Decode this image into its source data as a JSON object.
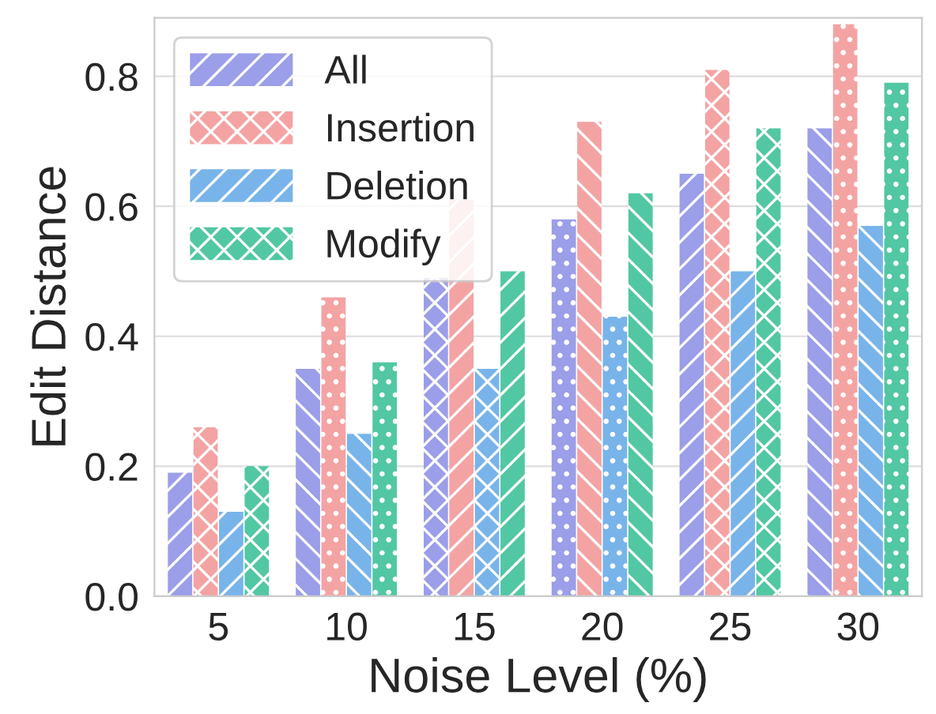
{
  "chart_data": {
    "type": "bar",
    "xlabel": "Noise Level (%)",
    "ylabel": "Edit Distance",
    "categories": [
      "5",
      "10",
      "15",
      "20",
      "25",
      "30"
    ],
    "series": [
      {
        "name": "All",
        "color": "#9b9ee8",
        "values": [
          0.19,
          0.35,
          0.49,
          0.58,
          0.65,
          0.72
        ]
      },
      {
        "name": "Insertion",
        "color": "#f4a3a3",
        "values": [
          0.26,
          0.46,
          0.61,
          0.73,
          0.81,
          0.88
        ]
      },
      {
        "name": "Deletion",
        "color": "#78b4ea",
        "values": [
          0.13,
          0.25,
          0.35,
          0.43,
          0.5,
          0.57
        ]
      },
      {
        "name": "Modify",
        "color": "#52c7a3",
        "values": [
          0.2,
          0.36,
          0.5,
          0.62,
          0.72,
          0.79
        ]
      }
    ],
    "ylim": [
      0,
      0.89
    ],
    "yticks": [
      {
        "value": 0,
        "label": "0.0"
      },
      {
        "value": 0.2,
        "label": "0.2"
      },
      {
        "value": 0.4,
        "label": "0.4"
      },
      {
        "value": 0.6,
        "label": "0.6"
      },
      {
        "value": 0.8,
        "label": "0.8"
      }
    ],
    "grid": "y",
    "legend": "top left"
  }
}
